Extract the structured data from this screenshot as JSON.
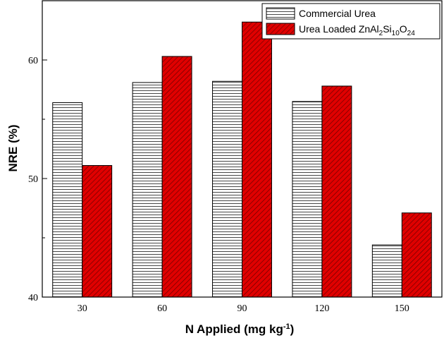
{
  "chart_data": {
    "type": "bar",
    "title": "",
    "xlabel": "N Applied (mg kg",
    "xlabel_superscript": "-1",
    "xlabel_suffix": ")",
    "ylabel": "NRE (%)",
    "categories": [
      "30",
      "60",
      "90",
      "120",
      "150"
    ],
    "ylim": [
      40,
      65
    ],
    "yticks": [
      40,
      50,
      60
    ],
    "grid": false,
    "legend_position": "top-right",
    "series": [
      {
        "name": "Commercial Urea",
        "values": [
          56.4,
          58.1,
          58.2,
          56.5,
          44.4
        ],
        "color": "#ffffff",
        "pattern": "horizontal-lines"
      },
      {
        "name": "Urea Loaded ZnAl2Si10O24",
        "legend_parts": [
          {
            "text": "Urea Loaded ZnAl",
            "sub": false
          },
          {
            "text": "2",
            "sub": true
          },
          {
            "text": "Si",
            "sub": false
          },
          {
            "text": "10",
            "sub": true
          },
          {
            "text": "O",
            "sub": false
          },
          {
            "text": "24",
            "sub": true
          }
        ],
        "values": [
          51.1,
          60.3,
          63.2,
          57.8,
          47.1
        ],
        "color": "#e00000",
        "pattern": "diagonal-lines"
      }
    ]
  }
}
